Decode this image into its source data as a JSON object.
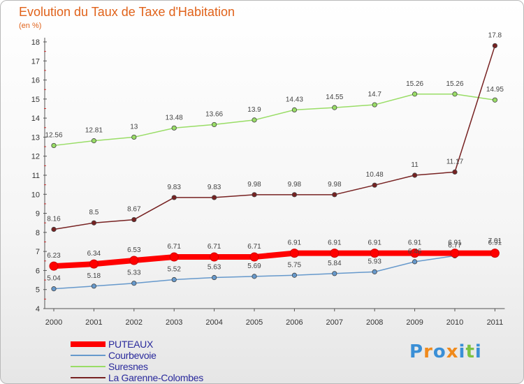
{
  "logo_text": "Proxiti",
  "chart_data": {
    "type": "line",
    "title": "Evolution du Taux de Taxe d'Habitation",
    "subtitle": "(en %)",
    "xlabel": "",
    "ylabel": "",
    "x": [
      "2000",
      "2001",
      "2002",
      "2003",
      "2004",
      "2005",
      "2006",
      "2007",
      "2008",
      "2009",
      "2010",
      "2011"
    ],
    "ylim": [
      4,
      18
    ],
    "yticks": [
      4,
      5,
      6,
      7,
      8,
      9,
      10,
      11,
      12,
      13,
      14,
      15,
      16,
      17,
      18
    ],
    "grid": false,
    "legend": "bottom-left",
    "series": [
      {
        "name": "PUTEAUX",
        "color": "#ff0000",
        "values": [
          6.23,
          6.34,
          6.53,
          6.71,
          6.71,
          6.71,
          6.91,
          6.91,
          6.91,
          6.91,
          6.91,
          6.91
        ],
        "labels": [
          "6.23",
          "6.34",
          "6.53",
          "6.71",
          "6.71",
          "6.71",
          "6.91",
          "6.91",
          "6.91",
          "6.91",
          "6.91",
          "6.91"
        ]
      },
      {
        "name": "Courbevoie",
        "color": "#6699cc",
        "values": [
          5.04,
          5.18,
          5.33,
          5.52,
          5.63,
          5.69,
          5.75,
          5.84,
          5.93,
          6.46,
          6.77,
          7.01
        ],
        "labels": [
          "5.04",
          "5.18",
          "5.33",
          "5.52",
          "5.63",
          "5.69",
          "5.75",
          "5.84",
          "5.93",
          "6.46",
          "6.77",
          "7.01"
        ]
      },
      {
        "name": "Suresnes",
        "color": "#99dd66",
        "values": [
          12.56,
          12.81,
          13,
          13.48,
          13.66,
          13.9,
          14.43,
          14.55,
          14.7,
          15.26,
          15.26,
          14.95
        ],
        "labels": [
          "12.56",
          "12.81",
          "13",
          "13.48",
          "13.66",
          "13.9",
          "14.43",
          "14.55",
          "14.7",
          "15.26",
          "15.26",
          "14.95"
        ]
      },
      {
        "name": "La Garenne-Colombes",
        "color": "#772222",
        "values": [
          8.16,
          8.5,
          8.67,
          9.83,
          9.83,
          9.98,
          9.98,
          9.98,
          10.48,
          11,
          11.17,
          17.8
        ],
        "labels": [
          "8.16",
          "8.5",
          "8.67",
          "9.83",
          "9.83",
          "9.98",
          "9.98",
          "9.98",
          "10.48",
          "11",
          "11.17",
          "17.8"
        ]
      }
    ]
  }
}
